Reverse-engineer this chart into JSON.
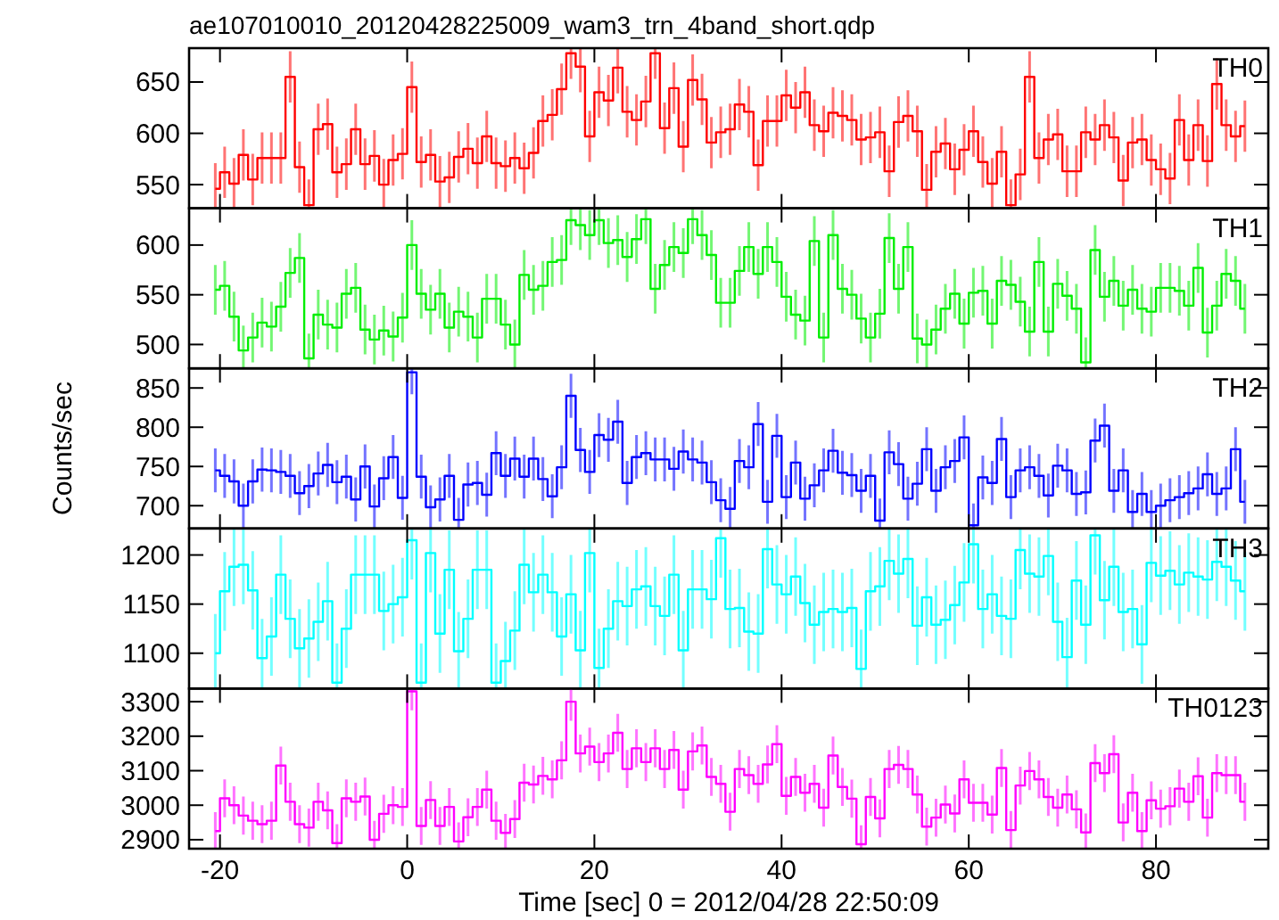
{
  "chart_data": [
    {
      "type": "step",
      "title": "ae107010010_20120428225009_wam3_trn_4band_short.qdp",
      "legend": "top right",
      "tick_labels": "y",
      "xlim": [
        -23.3,
        92
      ],
      "xticks": [
        -20,
        0,
        20,
        40,
        60,
        80
      ],
      "ylim": [
        527,
        683
      ],
      "yticks": [
        550,
        600,
        650
      ],
      "x": [
        -20.5,
        -19.5,
        -18.5,
        -17.5,
        -16.5,
        -15.5,
        -14.5,
        -13.5,
        -12.5,
        -11.5,
        -10.5,
        -9.5,
        -8.5,
        -7.5,
        -6.5,
        -5.5,
        -4.5,
        -3.5,
        -2.5,
        -1.5,
        -0.5,
        0.5,
        1.5,
        2.5,
        3.5,
        4.5,
        5.5,
        6.5,
        7.5,
        8.5,
        9.5,
        10.5,
        11.5,
        12.5,
        13.5,
        14.5,
        15.5,
        16.5,
        17.5,
        18.5,
        19.5,
        20.5,
        21.5,
        22.5,
        23.5,
        24.5,
        25.5,
        26.5,
        27.5,
        28.5,
        29.5,
        30.5,
        31.5,
        32.5,
        33.5,
        34.5,
        35.5,
        36.5,
        37.5,
        38.5,
        39.5,
        40.5,
        41.5,
        42.5,
        43.5,
        44.5,
        45.5,
        46.5,
        47.5,
        48.5,
        49.5,
        50.5,
        51.5,
        52.5,
        53.5,
        54.5,
        55.5,
        56.5,
        57.5,
        58.5,
        59.5,
        60.5,
        61.5,
        62.5,
        63.5,
        64.5,
        65.5,
        66.5,
        67.5,
        68.5,
        69.5,
        70.5,
        71.5,
        72.5,
        73.5,
        74.5,
        75.5,
        76.5,
        77.5,
        78.5,
        79.5,
        80.5,
        81.5,
        82.5,
        83.5,
        84.5,
        85.5,
        86.5,
        87.5,
        88.5,
        89.5
      ],
      "series": [
        {
          "name": "TH0",
          "color": "#ff0000",
          "values": [
            546,
            562,
            551,
            579,
            555,
            576,
            576,
            576,
            655,
            567,
            530,
            604,
            609,
            562,
            570,
            604,
            570,
            578,
            550,
            574,
            580,
            645,
            572,
            579,
            553,
            557,
            577,
            585,
            571,
            597,
            571,
            568,
            576,
            566,
            581,
            612,
            618,
            643,
            678,
            665,
            597,
            640,
            632,
            664,
            621,
            613,
            631,
            678,
            605,
            644,
            587,
            652,
            633,
            591,
            601,
            604,
            628,
            621,
            569,
            612,
            612,
            637,
            625,
            640,
            608,
            602,
            620,
            617,
            613,
            594,
            596,
            601,
            563,
            611,
            617,
            602,
            545,
            582,
            590,
            565,
            584,
            602,
            572,
            551,
            582,
            530,
            560,
            655,
            576,
            594,
            599,
            563,
            563,
            601,
            594,
            608,
            596,
            554,
            591,
            594,
            574,
            565,
            556,
            613,
            574,
            608,
            573,
            648,
            608,
            597,
            607
          ],
          "errors": [
            25,
            25,
            25,
            25,
            25,
            25,
            25,
            25,
            25,
            25,
            25,
            25,
            25,
            25,
            25,
            25,
            25,
            25,
            25,
            25,
            25,
            25,
            25,
            25,
            25,
            25,
            25,
            25,
            25,
            25,
            25,
            25,
            25,
            25,
            25,
            25,
            25,
            25,
            25,
            25,
            25,
            25,
            25,
            25,
            25,
            25,
            25,
            25,
            25,
            25,
            25,
            25,
            25,
            25,
            25,
            25,
            25,
            25,
            25,
            25,
            25,
            25,
            25,
            25,
            25,
            25,
            25,
            25,
            25,
            25,
            25,
            25,
            25,
            25,
            25,
            25,
            25,
            25,
            25,
            25,
            25,
            25,
            25,
            25,
            25,
            25,
            25,
            25,
            25,
            25,
            25,
            25,
            25,
            25,
            25,
            25,
            25,
            25,
            25,
            25,
            25,
            25,
            25,
            25,
            25,
            25,
            25,
            25,
            25,
            25,
            25
          ]
        }
      ]
    },
    {
      "type": "step",
      "legend": "top right",
      "tick_labels": "y",
      "xlim": [
        -23.3,
        92
      ],
      "xticks": [
        -20,
        0,
        20,
        40,
        60,
        80
      ],
      "ylim": [
        476,
        637
      ],
      "yticks": [
        500,
        550,
        600
      ],
      "x": [
        -20.5,
        -19.5,
        -18.5,
        -17.5,
        -16.5,
        -15.5,
        -14.5,
        -13.5,
        -12.5,
        -11.5,
        -10.5,
        -9.5,
        -8.5,
        -7.5,
        -6.5,
        -5.5,
        -4.5,
        -3.5,
        -2.5,
        -1.5,
        -0.5,
        0.5,
        1.5,
        2.5,
        3.5,
        4.5,
        5.5,
        6.5,
        7.5,
        8.5,
        9.5,
        10.5,
        11.5,
        12.5,
        13.5,
        14.5,
        15.5,
        16.5,
        17.5,
        18.5,
        19.5,
        20.5,
        21.5,
        22.5,
        23.5,
        24.5,
        25.5,
        26.5,
        27.5,
        28.5,
        29.5,
        30.5,
        31.5,
        32.5,
        33.5,
        34.5,
        35.5,
        36.5,
        37.5,
        38.5,
        39.5,
        40.5,
        41.5,
        42.5,
        43.5,
        44.5,
        45.5,
        46.5,
        47.5,
        48.5,
        49.5,
        50.5,
        51.5,
        52.5,
        53.5,
        54.5,
        55.5,
        56.5,
        57.5,
        58.5,
        59.5,
        60.5,
        61.5,
        62.5,
        63.5,
        64.5,
        65.5,
        66.5,
        67.5,
        68.5,
        69.5,
        70.5,
        71.5,
        72.5,
        73.5,
        74.5,
        75.5,
        76.5,
        77.5,
        78.5,
        79.5,
        80.5,
        81.5,
        82.5,
        83.5,
        84.5,
        85.5,
        86.5,
        87.5,
        88.5,
        89.5
      ],
      "series": [
        {
          "name": "TH1",
          "color": "#00ee00",
          "values": [
            555,
            559,
            528,
            494,
            507,
            522,
            518,
            538,
            572,
            587,
            486,
            530,
            520,
            517,
            551,
            557,
            515,
            505,
            514,
            508,
            527,
            600,
            551,
            535,
            551,
            517,
            533,
            528,
            507,
            546,
            546,
            520,
            500,
            570,
            555,
            559,
            583,
            585,
            625,
            620,
            610,
            625,
            602,
            605,
            588,
            606,
            626,
            556,
            580,
            598,
            592,
            626,
            610,
            590,
            542,
            542,
            574,
            598,
            571,
            598,
            583,
            548,
            530,
            524,
            604,
            507,
            610,
            556,
            550,
            526,
            507,
            531,
            607,
            556,
            598,
            506,
            500,
            515,
            536,
            551,
            521,
            552,
            554,
            521,
            564,
            560,
            543,
            513,
            583,
            513,
            561,
            549,
            536,
            482,
            595,
            548,
            564,
            539,
            555,
            536,
            533,
            557,
            557,
            554,
            539,
            577,
            512,
            539,
            571,
            564,
            536
          ],
          "errors": [
            25,
            25,
            25,
            25,
            25,
            25,
            25,
            25,
            25,
            25,
            25,
            25,
            25,
            25,
            25,
            25,
            25,
            25,
            25,
            25,
            25,
            25,
            25,
            25,
            25,
            25,
            25,
            25,
            25,
            25,
            25,
            25,
            25,
            25,
            25,
            25,
            25,
            25,
            25,
            25,
            25,
            25,
            25,
            25,
            25,
            25,
            25,
            25,
            25,
            25,
            25,
            25,
            25,
            25,
            25,
            25,
            25,
            25,
            25,
            25,
            25,
            25,
            25,
            25,
            25,
            25,
            25,
            25,
            25,
            25,
            25,
            25,
            25,
            25,
            25,
            25,
            25,
            25,
            25,
            25,
            25,
            25,
            25,
            25,
            25,
            25,
            25,
            25,
            25,
            25,
            25,
            25,
            25,
            25,
            25,
            25,
            25,
            25,
            25,
            25,
            25,
            25,
            25,
            25,
            25,
            25,
            25,
            25,
            25,
            25,
            25
          ]
        }
      ]
    },
    {
      "type": "step",
      "legend": "top right",
      "tick_labels": "y",
      "ylabel": "Counts/sec",
      "xlim": [
        -23.3,
        92
      ],
      "xticks": [
        -20,
        0,
        20,
        40,
        60,
        80
      ],
      "ylim": [
        671,
        875
      ],
      "yticks": [
        700,
        750,
        800,
        850
      ],
      "x": [
        -20.5,
        -19.5,
        -18.5,
        -17.5,
        -16.5,
        -15.5,
        -14.5,
        -13.5,
        -12.5,
        -11.5,
        -10.5,
        -9.5,
        -8.5,
        -7.5,
        -6.5,
        -5.5,
        -4.5,
        -3.5,
        -2.5,
        -1.5,
        -0.5,
        0.5,
        1.5,
        2.5,
        3.5,
        4.5,
        5.5,
        6.5,
        7.5,
        8.5,
        9.5,
        10.5,
        11.5,
        12.5,
        13.5,
        14.5,
        15.5,
        16.5,
        17.5,
        18.5,
        19.5,
        20.5,
        21.5,
        22.5,
        23.5,
        24.5,
        25.5,
        26.5,
        27.5,
        28.5,
        29.5,
        30.5,
        31.5,
        32.5,
        33.5,
        34.5,
        35.5,
        36.5,
        37.5,
        38.5,
        39.5,
        40.5,
        41.5,
        42.5,
        43.5,
        44.5,
        45.5,
        46.5,
        47.5,
        48.5,
        49.5,
        50.5,
        51.5,
        52.5,
        53.5,
        54.5,
        55.5,
        56.5,
        57.5,
        58.5,
        59.5,
        60.5,
        61.5,
        62.5,
        63.5,
        64.5,
        65.5,
        66.5,
        67.5,
        68.5,
        69.5,
        70.5,
        71.5,
        72.5,
        73.5,
        74.5,
        75.5,
        76.5,
        77.5,
        78.5,
        79.5,
        80.5,
        81.5,
        82.5,
        83.5,
        84.5,
        85.5,
        86.5,
        87.5,
        88.5,
        89.5
      ],
      "series": [
        {
          "name": "TH2",
          "color": "#0000ff",
          "values": [
            745,
            738,
            731,
            700,
            731,
            746,
            745,
            743,
            738,
            716,
            725,
            741,
            752,
            730,
            737,
            708,
            750,
            699,
            735,
            762,
            710,
            870,
            737,
            698,
            708,
            738,
            682,
            727,
            729,
            714,
            767,
            738,
            760,
            737,
            760,
            734,
            712,
            749,
            840,
            771,
            743,
            790,
            784,
            807,
            729,
            762,
            767,
            759,
            759,
            747,
            769,
            759,
            755,
            730,
            707,
            696,
            757,
            749,
            804,
            705,
            789,
            711,
            755,
            709,
            726,
            745,
            770,
            742,
            739,
            719,
            738,
            681,
            768,
            753,
            709,
            728,
            772,
            719,
            749,
            757,
            787,
            675,
            736,
            729,
            785,
            711,
            745,
            749,
            738,
            713,
            751,
            745,
            715,
            717,
            783,
            802,
            719,
            745,
            692,
            715,
            692,
            700,
            707,
            711,
            716,
            722,
            740,
            715,
            722,
            772,
            705
          ],
          "errors": [
            28,
            28,
            28,
            28,
            28,
            28,
            28,
            28,
            28,
            28,
            28,
            28,
            28,
            28,
            28,
            28,
            28,
            28,
            28,
            28,
            28,
            28,
            28,
            28,
            28,
            28,
            28,
            28,
            28,
            28,
            28,
            28,
            28,
            28,
            28,
            28,
            28,
            28,
            28,
            28,
            28,
            28,
            28,
            28,
            28,
            28,
            28,
            28,
            28,
            28,
            28,
            28,
            28,
            28,
            28,
            28,
            28,
            28,
            28,
            28,
            28,
            28,
            28,
            28,
            28,
            28,
            28,
            28,
            28,
            28,
            28,
            28,
            28,
            28,
            28,
            28,
            28,
            28,
            28,
            28,
            28,
            28,
            28,
            28,
            28,
            28,
            28,
            28,
            28,
            28,
            28,
            28,
            28,
            28,
            28,
            28,
            28,
            28,
            28,
            28,
            28,
            28,
            28,
            28,
            28,
            28,
            28,
            28,
            28,
            28,
            28
          ]
        }
      ]
    },
    {
      "type": "step",
      "legend": "top right",
      "tick_labels": "y",
      "xlim": [
        -23.3,
        92
      ],
      "xticks": [
        -20,
        0,
        20,
        40,
        60,
        80
      ],
      "ylim": [
        1064,
        1227
      ],
      "yticks": [
        1100,
        1150,
        1200
      ],
      "x": [
        -20.5,
        -19.5,
        -18.5,
        -17.5,
        -16.5,
        -15.5,
        -14.5,
        -13.5,
        -12.5,
        -11.5,
        -10.5,
        -9.5,
        -8.5,
        -7.5,
        -6.5,
        -5.5,
        -4.5,
        -3.5,
        -2.5,
        -1.5,
        -0.5,
        0.5,
        1.5,
        2.5,
        3.5,
        4.5,
        5.5,
        6.5,
        7.5,
        8.5,
        9.5,
        10.5,
        11.5,
        12.5,
        13.5,
        14.5,
        15.5,
        16.5,
        17.5,
        18.5,
        19.5,
        20.5,
        21.5,
        22.5,
        23.5,
        24.5,
        25.5,
        26.5,
        27.5,
        28.5,
        29.5,
        30.5,
        31.5,
        32.5,
        33.5,
        34.5,
        35.5,
        36.5,
        37.5,
        38.5,
        39.5,
        40.5,
        41.5,
        42.5,
        43.5,
        44.5,
        45.5,
        46.5,
        47.5,
        48.5,
        49.5,
        50.5,
        51.5,
        52.5,
        53.5,
        54.5,
        55.5,
        56.5,
        57.5,
        58.5,
        59.5,
        60.5,
        61.5,
        62.5,
        63.5,
        64.5,
        65.5,
        66.5,
        67.5,
        68.5,
        69.5,
        70.5,
        71.5,
        72.5,
        73.5,
        74.5,
        75.5,
        76.5,
        77.5,
        78.5,
        79.5,
        80.5,
        81.5,
        82.5,
        83.5,
        84.5,
        85.5,
        86.5,
        87.5,
        88.5,
        89.5
      ],
      "series": [
        {
          "name": "TH3",
          "color": "#00ffff",
          "values": [
            1100,
            1163,
            1188,
            1190,
            1164,
            1095,
            1117,
            1180,
            1135,
            1105,
            1115,
            1132,
            1153,
            1070,
            1125,
            1180,
            1180,
            1180,
            1143,
            1150,
            1157,
            1215,
            1070,
            1202,
            1120,
            1185,
            1102,
            1135,
            1185,
            1185,
            1070,
            1092,
            1123,
            1190,
            1162,
            1180,
            1162,
            1117,
            1160,
            1103,
            1202,
            1085,
            1125,
            1153,
            1148,
            1165,
            1168,
            1148,
            1138,
            1180,
            1103,
            1165,
            1165,
            1155,
            1217,
            1145,
            1146,
            1122,
            1120,
            1206,
            1170,
            1160,
            1178,
            1151,
            1129,
            1142,
            1145,
            1142,
            1146,
            1084,
            1163,
            1168,
            1194,
            1181,
            1196,
            1128,
            1157,
            1129,
            1134,
            1149,
            1172,
            1211,
            1145,
            1160,
            1138,
            1135,
            1205,
            1181,
            1178,
            1199,
            1132,
            1096,
            1174,
            1129,
            1220,
            1154,
            1188,
            1142,
            1145,
            1109,
            1192,
            1179,
            1184,
            1170,
            1182,
            1178,
            1175,
            1193,
            1188,
            1174,
            1163
          ],
          "errors": [
            40,
            40,
            40,
            40,
            40,
            40,
            40,
            40,
            40,
            40,
            40,
            40,
            40,
            40,
            40,
            40,
            40,
            40,
            40,
            40,
            40,
            40,
            40,
            40,
            40,
            40,
            40,
            40,
            40,
            40,
            40,
            40,
            40,
            40,
            40,
            40,
            40,
            40,
            40,
            40,
            40,
            40,
            40,
            40,
            40,
            40,
            40,
            40,
            40,
            40,
            40,
            40,
            40,
            40,
            40,
            40,
            40,
            40,
            40,
            40,
            40,
            40,
            40,
            40,
            40,
            40,
            40,
            40,
            40,
            40,
            40,
            40,
            40,
            40,
            40,
            40,
            40,
            40,
            40,
            40,
            40,
            40,
            40,
            40,
            40,
            40,
            40,
            40,
            40,
            40,
            40,
            40,
            40,
            40,
            40,
            40,
            40,
            40,
            40,
            40,
            40,
            40,
            40,
            40,
            40,
            40,
            40,
            40,
            40,
            40,
            40
          ]
        }
      ]
    },
    {
      "type": "step",
      "legend": "top right",
      "xlabel": "Time [sec] 0 = 2012/04/28 22:50:09",
      "xlim": [
        -23.3,
        92
      ],
      "xticks": [
        -20,
        0,
        20,
        40,
        60,
        80
      ],
      "ylim": [
        2874,
        3338
      ],
      "yticks": [
        2900,
        3000,
        3100,
        3200,
        3300
      ],
      "x": [
        -20.5,
        -19.5,
        -18.5,
        -17.5,
        -16.5,
        -15.5,
        -14.5,
        -13.5,
        -12.5,
        -11.5,
        -10.5,
        -9.5,
        -8.5,
        -7.5,
        -6.5,
        -5.5,
        -4.5,
        -3.5,
        -2.5,
        -1.5,
        -0.5,
        0.5,
        1.5,
        2.5,
        3.5,
        4.5,
        5.5,
        6.5,
        7.5,
        8.5,
        9.5,
        10.5,
        11.5,
        12.5,
        13.5,
        14.5,
        15.5,
        16.5,
        17.5,
        18.5,
        19.5,
        20.5,
        21.5,
        22.5,
        23.5,
        24.5,
        25.5,
        26.5,
        27.5,
        28.5,
        29.5,
        30.5,
        31.5,
        32.5,
        33.5,
        34.5,
        35.5,
        36.5,
        37.5,
        38.5,
        39.5,
        40.5,
        41.5,
        42.5,
        43.5,
        44.5,
        45.5,
        46.5,
        47.5,
        48.5,
        49.5,
        50.5,
        51.5,
        52.5,
        53.5,
        54.5,
        55.5,
        56.5,
        57.5,
        58.5,
        59.5,
        60.5,
        61.5,
        62.5,
        63.5,
        64.5,
        65.5,
        66.5,
        67.5,
        68.5,
        69.5,
        70.5,
        71.5,
        72.5,
        73.5,
        74.5,
        75.5,
        76.5,
        77.5,
        78.5,
        79.5,
        80.5,
        81.5,
        82.5,
        83.5,
        84.5,
        85.5,
        86.5,
        87.5,
        88.5,
        89.5
      ],
      "series": [
        {
          "name": "TH0123",
          "color": "#ff00ff",
          "values": [
            2925,
            3020,
            3000,
            2970,
            2955,
            2945,
            2955,
            3115,
            3010,
            2945,
            2935,
            3010,
            2985,
            2890,
            3020,
            3010,
            3025,
            2900,
            2975,
            3000,
            2995,
            3330,
            2940,
            3015,
            2940,
            2995,
            2895,
            2965,
            2995,
            3045,
            2955,
            2920,
            2960,
            3065,
            3060,
            3085,
            3075,
            3130,
            3300,
            3150,
            3170,
            3125,
            3150,
            3210,
            3105,
            3165,
            3125,
            3165,
            3105,
            3160,
            3045,
            3156,
            3173,
            3082,
            3062,
            2981,
            3105,
            3087,
            3062,
            3118,
            3177,
            3027,
            3082,
            3036,
            3062,
            2993,
            3144,
            3053,
            3019,
            2887,
            3024,
            2962,
            3105,
            3117,
            3105,
            3031,
            2938,
            2964,
            3002,
            2976,
            3075,
            3007,
            3007,
            2973,
            3108,
            2928,
            3057,
            3099,
            3075,
            3024,
            2993,
            3031,
            2988,
            2921,
            3122,
            3093,
            3148,
            2950,
            3036,
            2925,
            3014,
            2990,
            2997,
            3048,
            3010,
            3084,
            2964,
            3093,
            3087,
            3087,
            3010
          ],
          "errors": [
            55,
            55,
            55,
            55,
            55,
            55,
            55,
            55,
            55,
            55,
            55,
            55,
            55,
            55,
            55,
            55,
            55,
            55,
            55,
            55,
            55,
            55,
            55,
            55,
            55,
            55,
            55,
            55,
            55,
            55,
            55,
            55,
            55,
            55,
            55,
            55,
            55,
            55,
            55,
            55,
            55,
            55,
            55,
            55,
            55,
            55,
            55,
            55,
            55,
            55,
            55,
            55,
            55,
            55,
            55,
            55,
            55,
            55,
            55,
            55,
            55,
            55,
            55,
            55,
            55,
            55,
            55,
            55,
            55,
            55,
            55,
            55,
            55,
            55,
            55,
            55,
            55,
            55,
            55,
            55,
            55,
            55,
            55,
            55,
            55,
            55,
            55,
            55,
            55,
            55,
            55,
            55,
            55,
            55,
            55,
            55,
            55,
            55,
            55,
            55,
            55,
            55,
            55,
            55,
            55,
            55,
            55,
            55,
            55,
            55,
            55
          ]
        }
      ]
    }
  ]
}
